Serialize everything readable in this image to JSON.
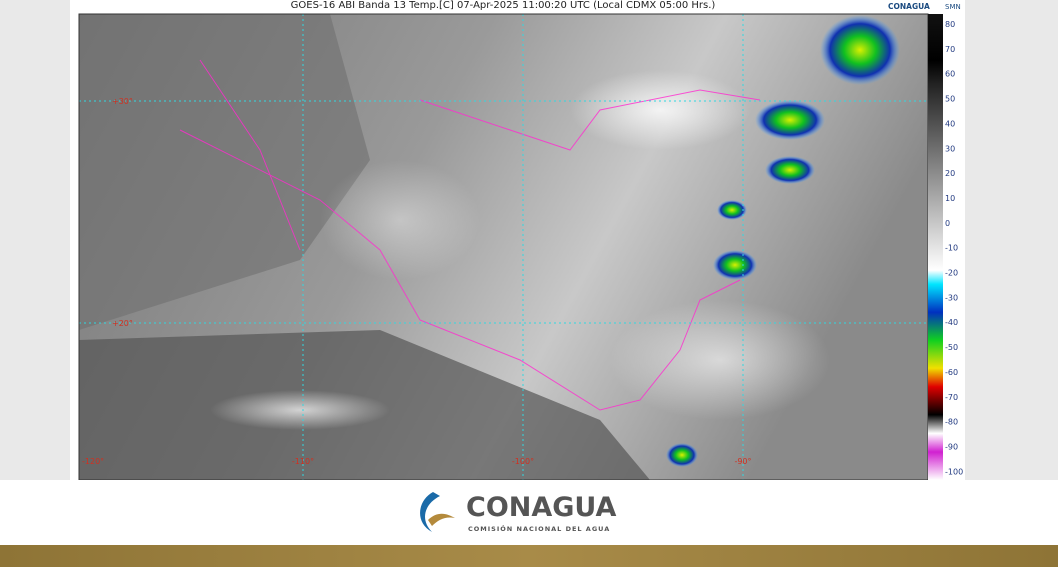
{
  "header": {
    "title": "GOES-16 ABI Banda 13 Temp.[C] 07-Apr-2025 11:00:20 UTC (Local CDMX  05:00 Hrs.)",
    "logo_left": "CONAGUA",
    "logo_right": "SMN"
  },
  "map": {
    "latitude_labels": [
      "+30°",
      "+20°"
    ],
    "longitude_labels": [
      "-120°",
      "-110°",
      "-100°",
      "-90°"
    ]
  },
  "colorbar": {
    "ticks": [
      80,
      70,
      60,
      50,
      40,
      30,
      20,
      10,
      0,
      -10,
      -20,
      -30,
      -40,
      -50,
      -60,
      -70,
      -80,
      -90,
      -100
    ]
  },
  "footer": {
    "brand": "CONAGUA",
    "subtitle": "COMISIÓN NACIONAL DEL AGUA"
  }
}
